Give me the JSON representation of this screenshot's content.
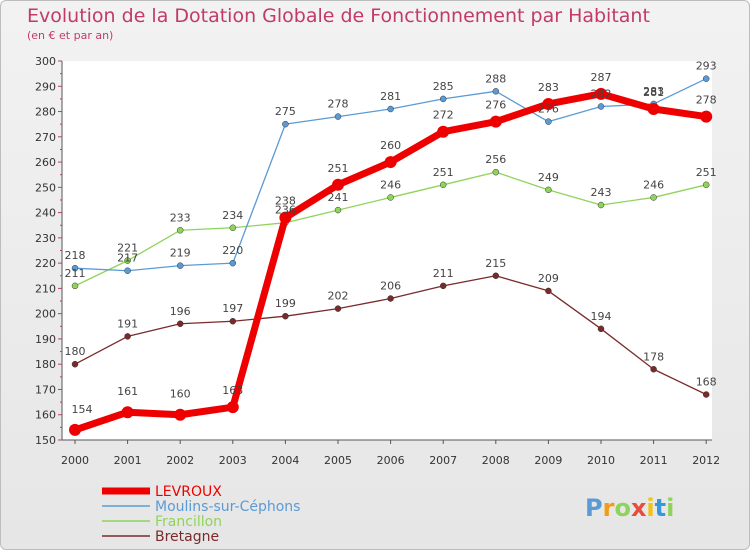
{
  "chart_data": {
    "type": "line",
    "title": "Evolution de la Dotation Globale de Fonctionnement par Habitant",
    "subtitle": "(en € et par an)",
    "xlabel": "",
    "ylabel": "",
    "categories": [
      "2000",
      "2001",
      "2002",
      "2003",
      "2004",
      "2005",
      "2006",
      "2007",
      "2008",
      "2009",
      "2010",
      "2011",
      "2012"
    ],
    "ylim": [
      150,
      300
    ],
    "yticks": [
      150,
      160,
      170,
      180,
      190,
      200,
      210,
      220,
      230,
      240,
      250,
      260,
      270,
      280,
      290,
      300
    ],
    "grid": false,
    "legend_position": "bottom-left",
    "series": [
      {
        "name": "LEVROUX",
        "color": "#ee0000",
        "values": [
          154,
          161,
          160,
          163,
          238,
          251,
          260,
          272,
          276,
          283,
          287,
          281,
          278
        ]
      },
      {
        "name": "Moulins-sur-Céphons",
        "color": "#5b9bd5",
        "values": [
          218,
          217,
          219,
          220,
          275,
          278,
          281,
          285,
          288,
          276,
          282,
          283,
          293
        ]
      },
      {
        "name": "Francillon",
        "color": "#8fd45a",
        "values": [
          211,
          221,
          233,
          234,
          236,
          241,
          246,
          251,
          256,
          249,
          243,
          246,
          251
        ]
      },
      {
        "name": "Bretagne",
        "color": "#7a2a2a",
        "values": [
          180,
          191,
          196,
          197,
          199,
          202,
          206,
          211,
          215,
          209,
          194,
          178,
          168
        ]
      }
    ]
  },
  "branding": {
    "logo_text": "Proxiti"
  }
}
